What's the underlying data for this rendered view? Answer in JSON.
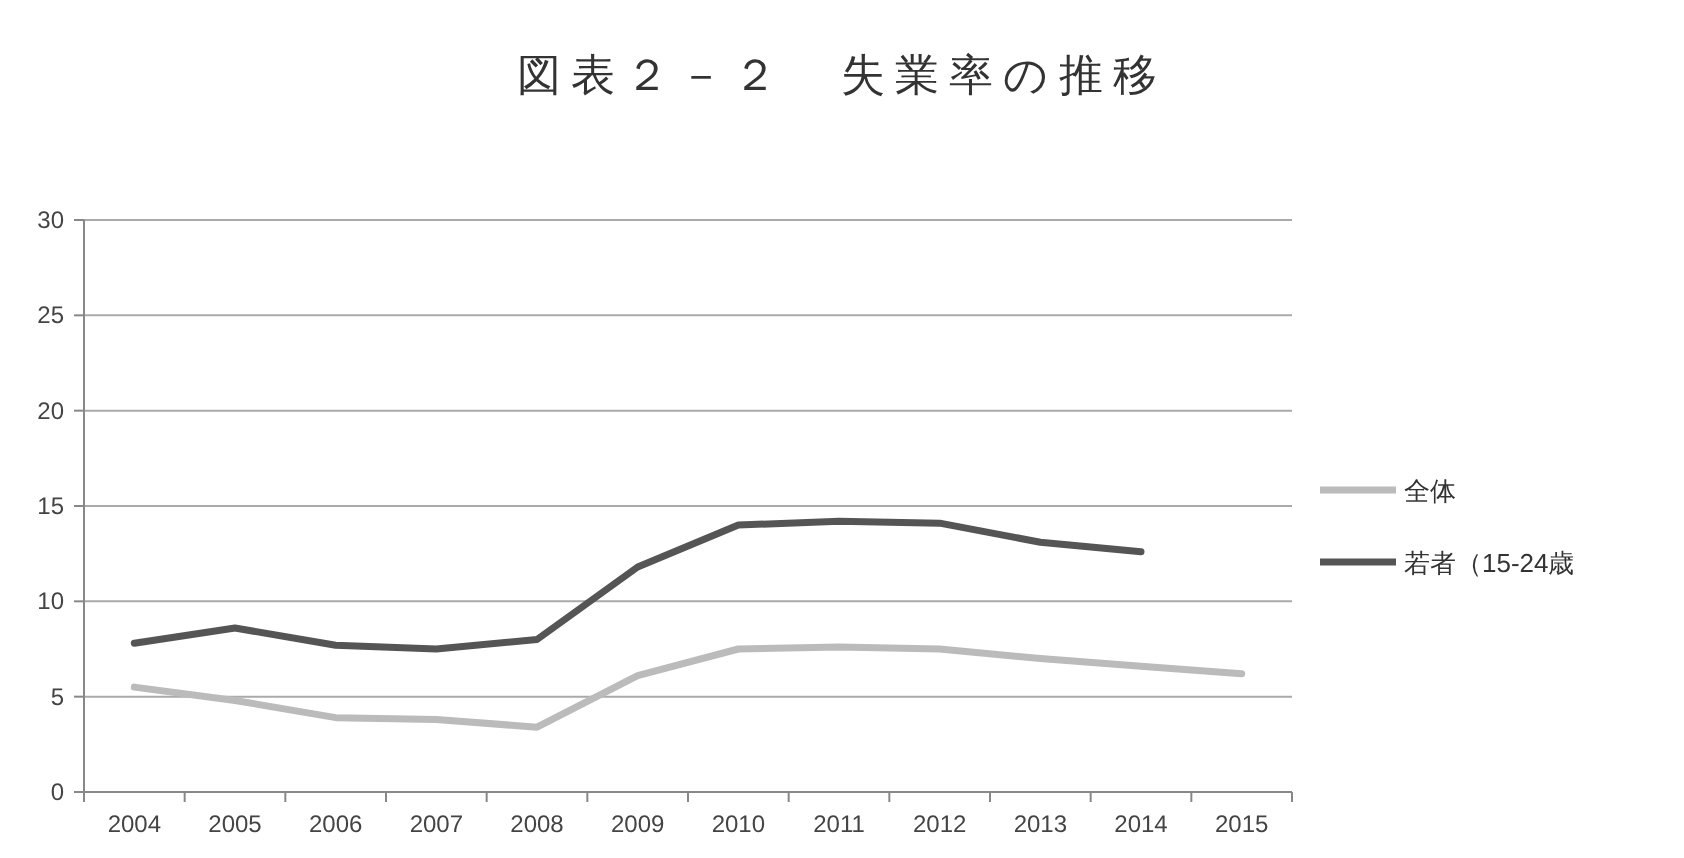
{
  "chart_data": {
    "type": "line",
    "title": "図表２－２　失業率の推移",
    "categories": [
      "2004",
      "2005",
      "2006",
      "2007",
      "2008",
      "2009",
      "2010",
      "2011",
      "2012",
      "2013",
      "2014",
      "2015"
    ],
    "series": [
      {
        "name": "全体",
        "color": "#bbbbbb",
        "values": [
          5.5,
          4.8,
          3.9,
          3.8,
          3.4,
          6.1,
          7.5,
          7.6,
          7.5,
          7.0,
          6.6,
          6.2
        ]
      },
      {
        "name": "若者（15-24歳",
        "color": "#555555",
        "values": [
          7.8,
          8.6,
          7.7,
          7.5,
          8.0,
          11.8,
          14.0,
          14.2,
          14.1,
          13.1,
          12.6,
          null
        ]
      }
    ],
    "ylim": [
      0,
      30
    ],
    "yticks": [
      0,
      5,
      10,
      15,
      20,
      25,
      30
    ],
    "grid": "y",
    "legend": "right",
    "marker": "none",
    "line_style": "solid"
  }
}
